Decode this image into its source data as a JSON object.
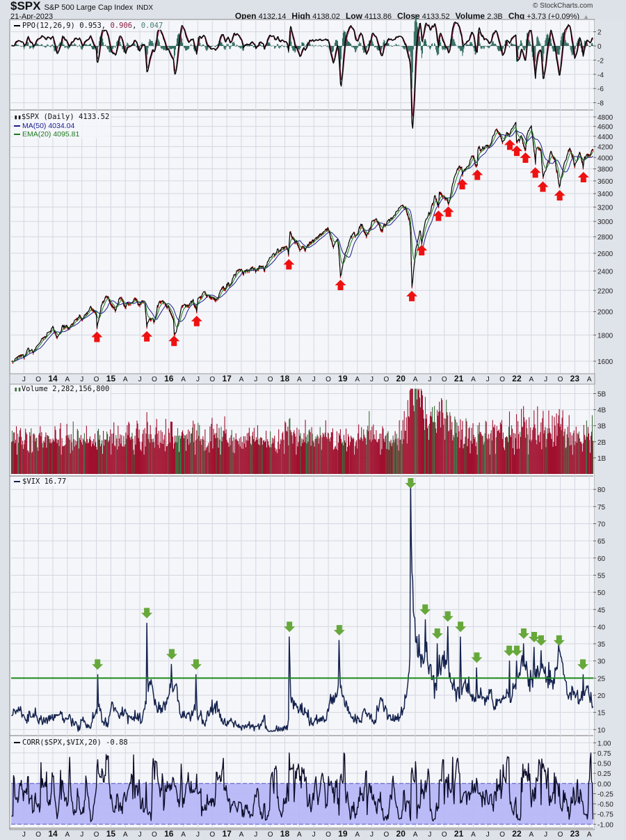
{
  "header": {
    "symbol": "$SPX",
    "name": "S&P 500 Large Cap Index",
    "exchange": "INDX",
    "date": "21-Apr-2023",
    "copyright": "© StockCharts.com",
    "open_label": "Open",
    "open": "4132.14",
    "high_label": "High",
    "high": "4138.02",
    "low_label": "Low",
    "low": "4113.86",
    "close_label": "Close",
    "close": "4133.52",
    "volume_label": "Volume",
    "volume": "2.3B",
    "chg_label": "Chg",
    "chg": "+3.73 (+0.09%)",
    "chg_arrow": "▲"
  },
  "panels": {
    "ppo": {
      "name": "PPO(12,26,9)",
      "v1": "0.953",
      "v2": "0.906",
      "v3": "0.047"
    },
    "price": {
      "name": "$SPX (Daily) 4133.52",
      "ma": "MA(50) 4034.04",
      "ema": "EMA(20) 4095.81"
    },
    "volume": {
      "name": "Volume 2,282,156,800"
    },
    "vix": {
      "name": "$VIX 16.77"
    },
    "corr": {
      "name": "CORR($SPX,$VIX,20) -0.88"
    }
  },
  "colors": {
    "price": "#000000",
    "down": "#cc0000",
    "ma": "#1a1a8c",
    "ema": "#1d7a1d",
    "vol_down": "#a0102e",
    "vol_up": "#3d6b3d",
    "vix": "#14224d",
    "vix_line": "#1a8a1a",
    "corr_band": "#b5b5f7",
    "up_arrow": "#ee1111",
    "down_arrow": "#66a83a",
    "ppo_signal": "#8b1e3f",
    "ppo_hist": "#2f6b5e"
  },
  "chart_data": {
    "type": "line",
    "x_range": [
      2013.28,
      2023.32
    ],
    "x_labels": [
      [
        2013.5,
        "J"
      ],
      [
        2013.75,
        "O"
      ],
      [
        2014,
        "14"
      ],
      [
        2014.25,
        "A"
      ],
      [
        2014.5,
        "J"
      ],
      [
        2014.75,
        "O"
      ],
      [
        2015,
        "15"
      ],
      [
        2015.25,
        "A"
      ],
      [
        2015.5,
        "J"
      ],
      [
        2015.75,
        "O"
      ],
      [
        2016,
        "16"
      ],
      [
        2016.25,
        "A"
      ],
      [
        2016.5,
        "J"
      ],
      [
        2016.75,
        "O"
      ],
      [
        2017,
        "17"
      ],
      [
        2017.25,
        "A"
      ],
      [
        2017.5,
        "J"
      ],
      [
        2017.75,
        "O"
      ],
      [
        2018,
        "18"
      ],
      [
        2018.25,
        "A"
      ],
      [
        2018.5,
        "J"
      ],
      [
        2018.75,
        "O"
      ],
      [
        2019,
        "19"
      ],
      [
        2019.25,
        "A"
      ],
      [
        2019.5,
        "J"
      ],
      [
        2019.75,
        "O"
      ],
      [
        2020,
        "20"
      ],
      [
        2020.25,
        "A"
      ],
      [
        2020.5,
        "J"
      ],
      [
        2020.75,
        "O"
      ],
      [
        2021,
        "21"
      ],
      [
        2021.25,
        "A"
      ],
      [
        2021.5,
        "J"
      ],
      [
        2021.75,
        "O"
      ],
      [
        2022,
        "22"
      ],
      [
        2022.25,
        "A"
      ],
      [
        2022.5,
        "J"
      ],
      [
        2022.75,
        "O"
      ],
      [
        2023,
        "23"
      ],
      [
        2023.25,
        "A"
      ]
    ],
    "ppo": {
      "ylim": [
        -9,
        3
      ],
      "ticks": [
        "2",
        "0",
        "-2",
        "-4",
        "-6",
        "-8"
      ]
    },
    "price": {
      "scale": "log",
      "ylim": [
        1500,
        4900
      ],
      "ticks": [
        "4800",
        "4600",
        "4400",
        "4200",
        "4000",
        "3800",
        "3600",
        "3400",
        "3200",
        "3000",
        "2800",
        "2600",
        "2400",
        "2200",
        "2000",
        "1800",
        "1600"
      ],
      "monthly_close_start": 2013.333,
      "monthly_close": [
        1597,
        1631,
        1606,
        1686,
        1633,
        1682,
        1757,
        1806,
        1848,
        1783,
        1859,
        1872,
        1884,
        1924,
        1960,
        1931,
        2003,
        1972,
        2018,
        2068,
        2059,
        1995,
        2105,
        2068,
        2086,
        2107,
        2063,
        2104,
        1972,
        1920,
        2079,
        2080,
        2044,
        1940,
        1932,
        2060,
        2065,
        2097,
        2099,
        2174,
        2171,
        2168,
        2126,
        2199,
        2239,
        2279,
        2364,
        2363,
        2384,
        2412,
        2423,
        2470,
        2472,
        2519,
        2575,
        2648,
        2674,
        2824,
        2714,
        2641,
        2648,
        2705,
        2718,
        2816,
        2902,
        2914,
        2712,
        2760,
        2507,
        2704,
        2784,
        2834,
        2946,
        2752,
        2942,
        2980,
        2926,
        2977,
        3038,
        3141,
        3231,
        3226,
        2954,
        2585,
        2912,
        3044,
        3100,
        3271,
        3500,
        3363,
        3270,
        3622,
        3756,
        3714,
        3811,
        3973,
        4181,
        4204,
        4298,
        4395,
        4523,
        4308,
        4605,
        4567,
        4766,
        4516,
        4374,
        4530,
        4132,
        4132,
        3785,
        4130,
        3955,
        3586,
        3872,
        4080,
        3840,
        4077,
        3970,
        4109,
        4134
      ],
      "support_lows": [
        [
          2014.76,
          1862
        ],
        [
          2015.62,
          1867
        ],
        [
          2016.09,
          1829
        ],
        [
          2016.48,
          2000
        ],
        [
          2018.07,
          2581
        ],
        [
          2018.96,
          2351
        ],
        [
          2020.19,
          2237
        ],
        [
          2020.36,
          2750
        ],
        [
          2020.65,
          3210
        ],
        [
          2020.82,
          3270
        ],
        [
          2021.06,
          3700
        ],
        [
          2021.32,
          3860
        ],
        [
          2021.88,
          4420
        ],
        [
          2022.0,
          4300
        ],
        [
          2022.15,
          4170
        ],
        [
          2022.32,
          3900
        ],
        [
          2022.45,
          3660
        ],
        [
          2022.74,
          3520
        ],
        [
          2023.15,
          3820
        ]
      ]
    },
    "volume": {
      "unit": "B",
      "ylim": [
        0,
        5.5
      ],
      "ticks": [
        "5B",
        "4B",
        "3B",
        "2B",
        "1B"
      ],
      "avg_by_year": {
        "2013": 2.3,
        "2014": 2.2,
        "2015": 2.3,
        "2016": 2.4,
        "2017": 2.1,
        "2018": 2.3,
        "2019": 2.1,
        "2020": 3.0,
        "2021": 2.5,
        "2022": 2.6,
        "2023": 2.6
      }
    },
    "vix": {
      "ylim": [
        8,
        84
      ],
      "ticks": [
        "80",
        "75",
        "70",
        "65",
        "60",
        "55",
        "50",
        "45",
        "40",
        "35",
        "30",
        "25",
        "20",
        "15",
        "10"
      ],
      "reference_line": 25,
      "monthly_start": 2013.29,
      "monthly": [
        14,
        16,
        17,
        13,
        15,
        16,
        14,
        13,
        13,
        15,
        14,
        14,
        13,
        12,
        11,
        13,
        12,
        14,
        17,
        13,
        15,
        18,
        15,
        15,
        13,
        13,
        14,
        13,
        20,
        22,
        16,
        16,
        18,
        21,
        20,
        15,
        14,
        14,
        16,
        13,
        12,
        14,
        16,
        15,
        12,
        12,
        12,
        12,
        12,
        11,
        11,
        10,
        12,
        10,
        10,
        10,
        10,
        11,
        19,
        18,
        16,
        14,
        13,
        13,
        12,
        12,
        19,
        19,
        23,
        17,
        15,
        14,
        13,
        16,
        16,
        13,
        18,
        16,
        14,
        13,
        13,
        15,
        22,
        45,
        34,
        28,
        30,
        26,
        24,
        27,
        30,
        23,
        22,
        25,
        24,
        22,
        18,
        19,
        17,
        18,
        17,
        20,
        17,
        19,
        21,
        24,
        27,
        27,
        26,
        29,
        28,
        24,
        23,
        29,
        30,
        23,
        22,
        20,
        20,
        21,
        17
      ],
      "spike_peaks": [
        [
          2014.77,
          26
        ],
        [
          2015.62,
          41
        ],
        [
          2016.05,
          29
        ],
        [
          2016.47,
          26
        ],
        [
          2018.08,
          37
        ],
        [
          2018.94,
          36
        ],
        [
          2020.17,
          82
        ],
        [
          2020.42,
          42
        ],
        [
          2020.63,
          35
        ],
        [
          2020.81,
          40
        ],
        [
          2021.03,
          37
        ],
        [
          2021.31,
          28
        ],
        [
          2021.87,
          30
        ],
        [
          2022.0,
          30
        ],
        [
          2022.12,
          35
        ],
        [
          2022.3,
          34
        ],
        [
          2022.42,
          33
        ],
        [
          2022.73,
          33
        ],
        [
          2023.14,
          26
        ]
      ]
    },
    "corr": {
      "ylim": [
        -1.05,
        1.05
      ],
      "band": [
        -1,
        0
      ],
      "ticks": [
        "1.00",
        "0.75",
        "0.50",
        "0.25",
        "0.00",
        "-0.25",
        "-0.50",
        "-0.75",
        "-1.00"
      ]
    }
  }
}
